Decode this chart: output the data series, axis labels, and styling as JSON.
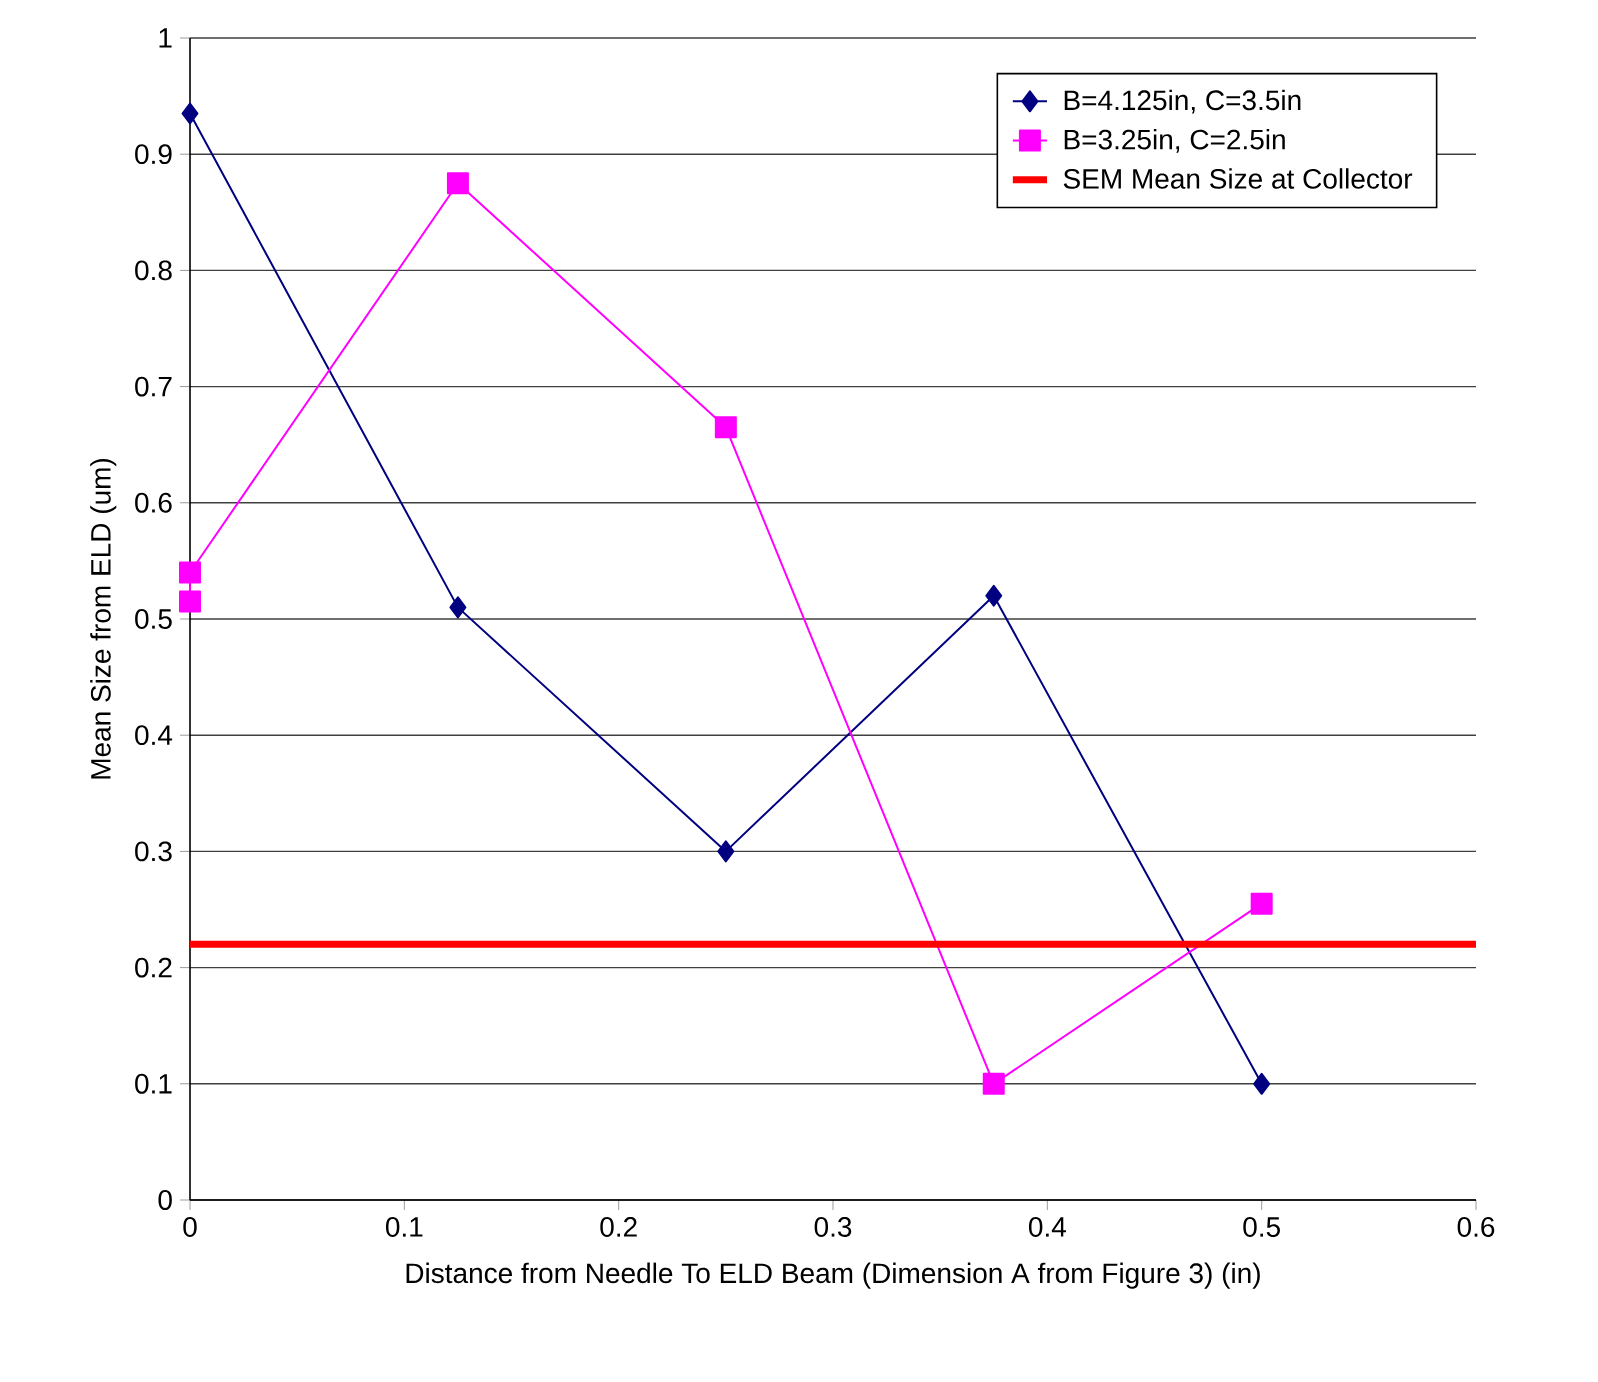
{
  "chart_data": {
    "type": "line",
    "xlabel": "Distance from Needle To ELD Beam (Dimension A from Figure 3) (in)",
    "ylabel": "Mean  Size from ELD (um)",
    "xlim": [
      0,
      0.6
    ],
    "xticks": [
      0,
      0.1,
      0.2,
      0.3,
      0.4,
      0.5,
      0.6
    ],
    "ylim": [
      0,
      1
    ],
    "yticks": [
      0,
      0.1,
      0.2,
      0.3,
      0.4,
      0.5,
      0.6,
      0.7,
      0.8,
      0.9,
      1
    ],
    "grid": "y",
    "legend": "top right",
    "series": [
      {
        "name": "B=4.125in, C=3.5in",
        "color": "#000080",
        "marker": "diamond",
        "x": [
          0,
          0.125,
          0.25,
          0.375,
          0.5
        ],
        "values": [
          0.935,
          0.51,
          0.3,
          0.52,
          0.1
        ]
      },
      {
        "name": "B=3.25in, C=2.5in",
        "color": "#ff00ff",
        "marker": "square",
        "x": [
          0,
          0,
          0.125,
          0.25,
          0.375,
          0.5
        ],
        "values": [
          0.515,
          0.54,
          0.875,
          0.665,
          0.1,
          0.255
        ]
      }
    ],
    "ref_lines": [
      {
        "axis": "y",
        "value": 0.22,
        "label": "SEM Mean Size at Collector",
        "color": "#ff0000"
      }
    ]
  }
}
